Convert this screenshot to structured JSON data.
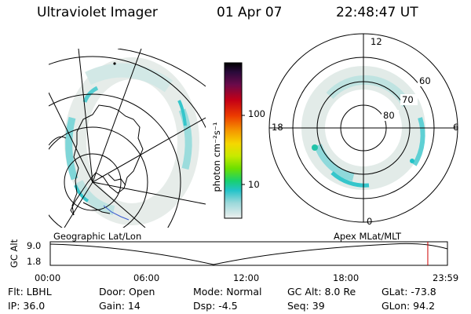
{
  "header": {
    "instrument": "Ultraviolet Imager",
    "date": "01 Apr 07",
    "time": "22:48:47 UT"
  },
  "colorbar": {
    "label": "photon cm⁻²s⁻¹",
    "ticks": [
      "100",
      "10"
    ],
    "scale": "log"
  },
  "panels": {
    "left_label": "Geographic Lat/Lon",
    "right_label": "Apex MLat/MLT",
    "mlt_labels": {
      "top": "12",
      "bottom": "0",
      "left": "18",
      "right": "6"
    },
    "mlat_labels": [
      "60",
      "70",
      "80"
    ]
  },
  "altitude_plot": {
    "ylabel": "GC Alt",
    "yticks": [
      "9.0",
      "1.8"
    ],
    "xticks": [
      "00:00",
      "06:00",
      "12:00",
      "18:00",
      "23:59"
    ],
    "current_time_fraction": 0.9505
  },
  "status": {
    "filter": "Flt: LBHL",
    "door": "Door: Open",
    "mode": "Mode: Normal",
    "gc_alt": "GC Alt: 8.0 Re",
    "glat": "GLat: -73.8",
    "ip": "IP: 36.0",
    "gain": "Gain: 14",
    "dsp": "Dsp:    -4.5",
    "seq": "Seq: 39",
    "glon": "GLon:  94.2"
  },
  "colors": {
    "aurora_low": "#e6ece9",
    "aurora_mid": "#bfe3e1",
    "aurora_high": "#22c3c8",
    "current_time_marker": "#cc0000",
    "coastline_blue": "#3a5ad0"
  }
}
